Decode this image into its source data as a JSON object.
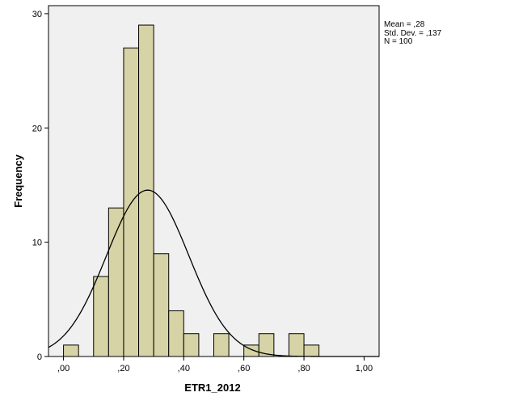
{
  "chart_data": {
    "type": "bar",
    "subtype": "histogram",
    "xlabel": "ETR1_2012",
    "ylabel": "Frequency",
    "xlim": [
      -0.05,
      1.05
    ],
    "ylim": [
      0,
      30.7
    ],
    "xticks": [
      0.0,
      0.2,
      0.4,
      0.6,
      0.8,
      1.0
    ],
    "xtick_labels": [
      ",00",
      ",20",
      ",40",
      ",60",
      ",80",
      "1,00"
    ],
    "yticks": [
      0,
      10,
      20,
      30
    ],
    "ytick_labels": [
      "0",
      "10",
      "20",
      "30"
    ],
    "bin_width": 0.05,
    "bins": [
      {
        "start": 0.0,
        "end": 0.05,
        "count": 1
      },
      {
        "start": 0.05,
        "end": 0.1,
        "count": 0
      },
      {
        "start": 0.1,
        "end": 0.15,
        "count": 7
      },
      {
        "start": 0.15,
        "end": 0.2,
        "count": 13
      },
      {
        "start": 0.2,
        "end": 0.25,
        "count": 27
      },
      {
        "start": 0.25,
        "end": 0.3,
        "count": 29
      },
      {
        "start": 0.3,
        "end": 0.35,
        "count": 9
      },
      {
        "start": 0.35,
        "end": 0.4,
        "count": 4
      },
      {
        "start": 0.4,
        "end": 0.45,
        "count": 2
      },
      {
        "start": 0.45,
        "end": 0.5,
        "count": 0
      },
      {
        "start": 0.5,
        "end": 0.55,
        "count": 2
      },
      {
        "start": 0.55,
        "end": 0.6,
        "count": 0
      },
      {
        "start": 0.6,
        "end": 0.65,
        "count": 1
      },
      {
        "start": 0.65,
        "end": 0.7,
        "count": 2
      },
      {
        "start": 0.7,
        "end": 0.75,
        "count": 0
      },
      {
        "start": 0.75,
        "end": 0.8,
        "count": 2
      },
      {
        "start": 0.8,
        "end": 0.85,
        "count": 1
      }
    ],
    "normal_curve": {
      "mean": 0.28,
      "sd": 0.137,
      "n": 100
    },
    "stats_lines": [
      "Mean = ,28",
      "Std. Dev. = ,137",
      "N = 100"
    ],
    "colors": {
      "bar_fill": "#d6d3a6",
      "bar_stroke": "#000000",
      "plot_bg": "#f0f0f0",
      "curve": "#000000"
    }
  }
}
